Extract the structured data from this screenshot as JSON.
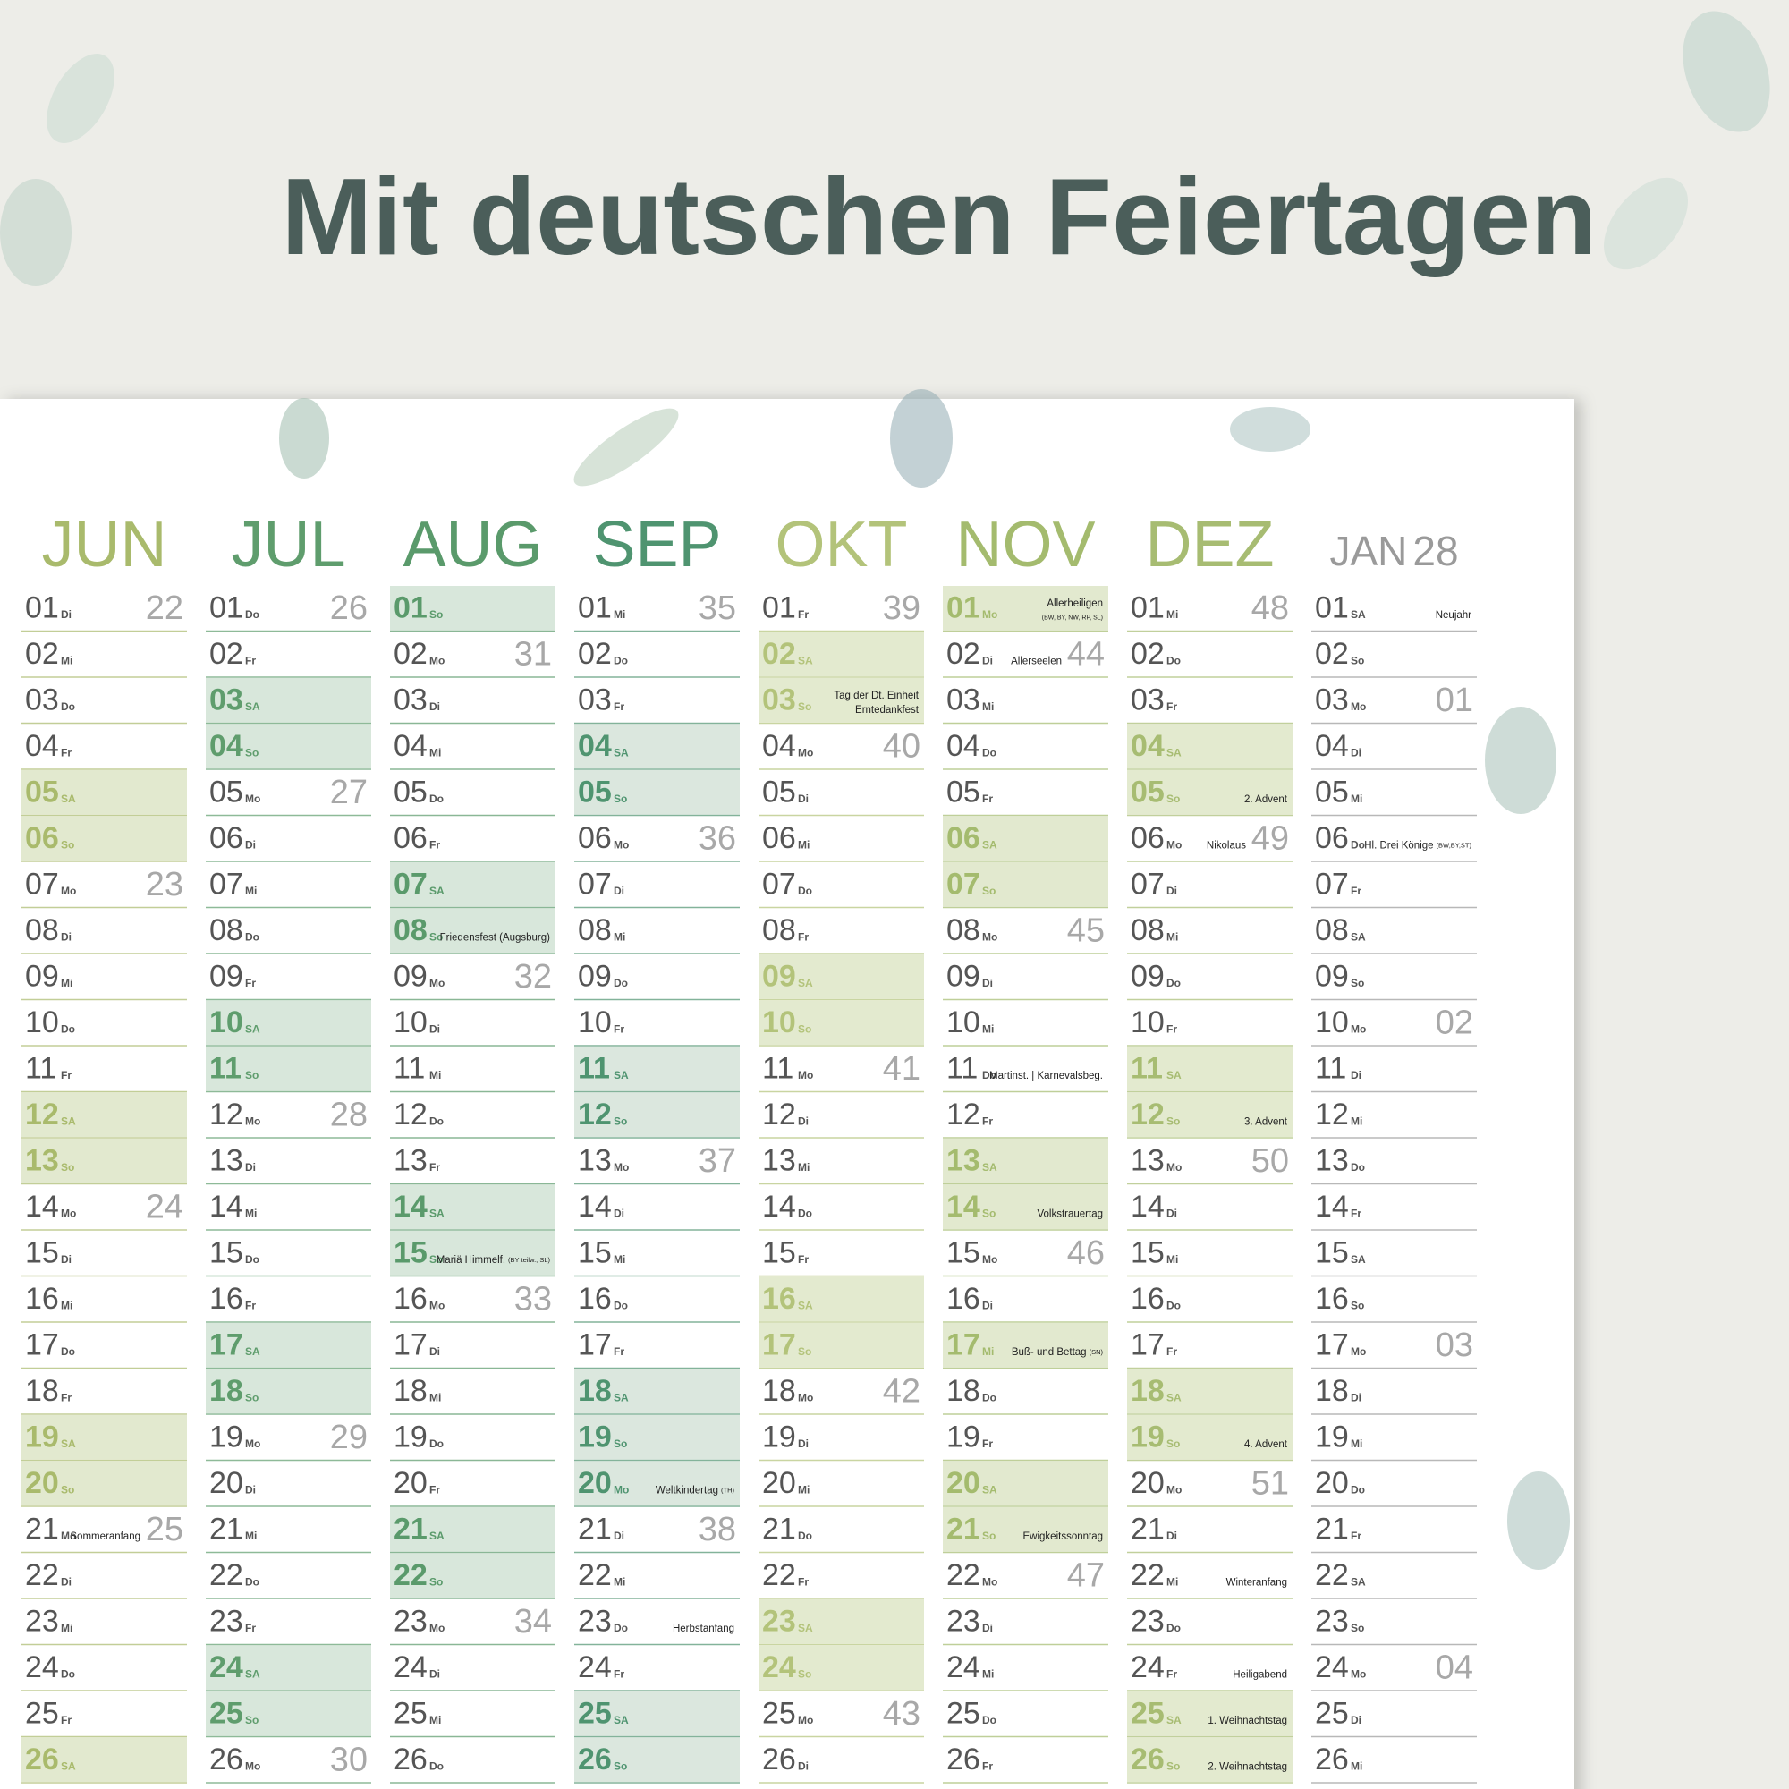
{
  "title": "Mit deutschen Feiertagen",
  "months": [
    {
      "name": "JUN",
      "color": "#a9ba6c",
      "shade": "#e2e9cf",
      "days": [
        {
          "d": "01",
          "w": "Di",
          "k": "22"
        },
        {
          "d": "02",
          "w": "Mi"
        },
        {
          "d": "03",
          "w": "Do"
        },
        {
          "d": "04",
          "w": "Fr"
        },
        {
          "d": "05",
          "w": "SA",
          "s": true
        },
        {
          "d": "06",
          "w": "So",
          "s": true
        },
        {
          "d": "07",
          "w": "Mo",
          "k": "23"
        },
        {
          "d": "08",
          "w": "Di"
        },
        {
          "d": "09",
          "w": "Mi"
        },
        {
          "d": "10",
          "w": "Do"
        },
        {
          "d": "11",
          "w": "Fr"
        },
        {
          "d": "12",
          "w": "SA",
          "s": true
        },
        {
          "d": "13",
          "w": "So",
          "s": true
        },
        {
          "d": "14",
          "w": "Mo",
          "k": "24"
        },
        {
          "d": "15",
          "w": "Di"
        },
        {
          "d": "16",
          "w": "Mi"
        },
        {
          "d": "17",
          "w": "Do"
        },
        {
          "d": "18",
          "w": "Fr"
        },
        {
          "d": "19",
          "w": "SA",
          "s": true
        },
        {
          "d": "20",
          "w": "So",
          "s": true
        },
        {
          "d": "21",
          "w": "Mo",
          "k": "25",
          "n": "Sommeranfang"
        },
        {
          "d": "22",
          "w": "Di"
        },
        {
          "d": "23",
          "w": "Mi"
        },
        {
          "d": "24",
          "w": "Do"
        },
        {
          "d": "25",
          "w": "Fr"
        },
        {
          "d": "26",
          "w": "SA",
          "s": true
        }
      ]
    },
    {
      "name": "JUL",
      "color": "#5f9d6d",
      "shade": "#d8e7db",
      "days": [
        {
          "d": "01",
          "w": "Do",
          "k": "26"
        },
        {
          "d": "02",
          "w": "Fr"
        },
        {
          "d": "03",
          "w": "SA",
          "s": true
        },
        {
          "d": "04",
          "w": "So",
          "s": true
        },
        {
          "d": "05",
          "w": "Mo",
          "k": "27"
        },
        {
          "d": "06",
          "w": "Di"
        },
        {
          "d": "07",
          "w": "Mi"
        },
        {
          "d": "08",
          "w": "Do"
        },
        {
          "d": "09",
          "w": "Fr"
        },
        {
          "d": "10",
          "w": "SA",
          "s": true
        },
        {
          "d": "11",
          "w": "So",
          "s": true
        },
        {
          "d": "12",
          "w": "Mo",
          "k": "28"
        },
        {
          "d": "13",
          "w": "Di"
        },
        {
          "d": "14",
          "w": "Mi"
        },
        {
          "d": "15",
          "w": "Do"
        },
        {
          "d": "16",
          "w": "Fr"
        },
        {
          "d": "17",
          "w": "SA",
          "s": true
        },
        {
          "d": "18",
          "w": "So",
          "s": true
        },
        {
          "d": "19",
          "w": "Mo",
          "k": "29"
        },
        {
          "d": "20",
          "w": "Di"
        },
        {
          "d": "21",
          "w": "Mi"
        },
        {
          "d": "22",
          "w": "Do"
        },
        {
          "d": "23",
          "w": "Fr"
        },
        {
          "d": "24",
          "w": "SA",
          "s": true
        },
        {
          "d": "25",
          "w": "So",
          "s": true
        },
        {
          "d": "26",
          "w": "Mo",
          "k": "30"
        }
      ]
    },
    {
      "name": "AUG",
      "color": "#5a9a6b",
      "shade": "#d8e7db",
      "days": [
        {
          "d": "01",
          "w": "So",
          "s": true
        },
        {
          "d": "02",
          "w": "Mo",
          "k": "31"
        },
        {
          "d": "03",
          "w": "Di"
        },
        {
          "d": "04",
          "w": "Mi"
        },
        {
          "d": "05",
          "w": "Do"
        },
        {
          "d": "06",
          "w": "Fr"
        },
        {
          "d": "07",
          "w": "SA",
          "s": true
        },
        {
          "d": "08",
          "w": "So",
          "s": true,
          "n": "Friedensfest (Augsburg)"
        },
        {
          "d": "09",
          "w": "Mo",
          "k": "32"
        },
        {
          "d": "10",
          "w": "Di"
        },
        {
          "d": "11",
          "w": "Mi"
        },
        {
          "d": "12",
          "w": "Do"
        },
        {
          "d": "13",
          "w": "Fr"
        },
        {
          "d": "14",
          "w": "SA",
          "s": true
        },
        {
          "d": "15",
          "w": "So",
          "s": true,
          "n": "Mariä Himmelf.",
          "sm": "(BY teilw., SL)"
        },
        {
          "d": "16",
          "w": "Mo",
          "k": "33"
        },
        {
          "d": "17",
          "w": "Di"
        },
        {
          "d": "18",
          "w": "Mi"
        },
        {
          "d": "19",
          "w": "Do"
        },
        {
          "d": "20",
          "w": "Fr"
        },
        {
          "d": "21",
          "w": "SA",
          "s": true
        },
        {
          "d": "22",
          "w": "So",
          "s": true
        },
        {
          "d": "23",
          "w": "Mo",
          "k": "34"
        },
        {
          "d": "24",
          "w": "Di"
        },
        {
          "d": "25",
          "w": "Mi"
        },
        {
          "d": "26",
          "w": "Do"
        }
      ]
    },
    {
      "name": "SEP",
      "color": "#4f9470",
      "shade": "#dbe7de",
      "days": [
        {
          "d": "01",
          "w": "Mi",
          "k": "35"
        },
        {
          "d": "02",
          "w": "Do"
        },
        {
          "d": "03",
          "w": "Fr"
        },
        {
          "d": "04",
          "w": "SA",
          "s": true
        },
        {
          "d": "05",
          "w": "So",
          "s": true
        },
        {
          "d": "06",
          "w": "Mo",
          "k": "36"
        },
        {
          "d": "07",
          "w": "Di"
        },
        {
          "d": "08",
          "w": "Mi"
        },
        {
          "d": "09",
          "w": "Do"
        },
        {
          "d": "10",
          "w": "Fr"
        },
        {
          "d": "11",
          "w": "SA",
          "s": true
        },
        {
          "d": "12",
          "w": "So",
          "s": true
        },
        {
          "d": "13",
          "w": "Mo",
          "k": "37"
        },
        {
          "d": "14",
          "w": "Di"
        },
        {
          "d": "15",
          "w": "Mi"
        },
        {
          "d": "16",
          "w": "Do"
        },
        {
          "d": "17",
          "w": "Fr"
        },
        {
          "d": "18",
          "w": "SA",
          "s": true
        },
        {
          "d": "19",
          "w": "So",
          "s": true
        },
        {
          "d": "20",
          "w": "Mo",
          "s": true,
          "n": "Weltkindertag",
          "sm": "(TH)"
        },
        {
          "d": "21",
          "w": "Di",
          "k": "38"
        },
        {
          "d": "22",
          "w": "Mi"
        },
        {
          "d": "23",
          "w": "Do",
          "n": "Herbstanfang"
        },
        {
          "d": "24",
          "w": "Fr"
        },
        {
          "d": "25",
          "w": "SA",
          "s": true
        },
        {
          "d": "26",
          "w": "So",
          "s": true
        }
      ]
    },
    {
      "name": "OKT",
      "color": "#b3c37a",
      "shade": "#e3eacf",
      "days": [
        {
          "d": "01",
          "w": "Fr",
          "k": "39"
        },
        {
          "d": "02",
          "w": "SA",
          "s": true
        },
        {
          "d": "03",
          "w": "So",
          "s": true,
          "n": "Tag der Dt. Einheit",
          "n2": "Erntedankfest"
        },
        {
          "d": "04",
          "w": "Mo",
          "k": "40"
        },
        {
          "d": "05",
          "w": "Di"
        },
        {
          "d": "06",
          "w": "Mi"
        },
        {
          "d": "07",
          "w": "Do"
        },
        {
          "d": "08",
          "w": "Fr"
        },
        {
          "d": "09",
          "w": "SA",
          "s": true
        },
        {
          "d": "10",
          "w": "So",
          "s": true
        },
        {
          "d": "11",
          "w": "Mo",
          "k": "41"
        },
        {
          "d": "12",
          "w": "Di"
        },
        {
          "d": "13",
          "w": "Mi"
        },
        {
          "d": "14",
          "w": "Do"
        },
        {
          "d": "15",
          "w": "Fr"
        },
        {
          "d": "16",
          "w": "SA",
          "s": true
        },
        {
          "d": "17",
          "w": "So",
          "s": true
        },
        {
          "d": "18",
          "w": "Mo",
          "k": "42"
        },
        {
          "d": "19",
          "w": "Di"
        },
        {
          "d": "20",
          "w": "Mi"
        },
        {
          "d": "21",
          "w": "Do"
        },
        {
          "d": "22",
          "w": "Fr"
        },
        {
          "d": "23",
          "w": "SA",
          "s": true
        },
        {
          "d": "24",
          "w": "So",
          "s": true
        },
        {
          "d": "25",
          "w": "Mo",
          "k": "43"
        },
        {
          "d": "26",
          "w": "Di"
        }
      ]
    },
    {
      "name": "NOV",
      "color": "#a4bb6e",
      "shade": "#e2e9cf",
      "days": [
        {
          "d": "01",
          "w": "Mo",
          "s": true,
          "n": "Allerheiligen",
          "n2": "(BW, BY, NW, RP, SL)"
        },
        {
          "d": "02",
          "w": "Di",
          "k": "44",
          "n": "Allerseelen"
        },
        {
          "d": "03",
          "w": "Mi"
        },
        {
          "d": "04",
          "w": "Do"
        },
        {
          "d": "05",
          "w": "Fr"
        },
        {
          "d": "06",
          "w": "SA",
          "s": true
        },
        {
          "d": "07",
          "w": "So",
          "s": true
        },
        {
          "d": "08",
          "w": "Mo",
          "k": "45"
        },
        {
          "d": "09",
          "w": "Di"
        },
        {
          "d": "10",
          "w": "Mi"
        },
        {
          "d": "11",
          "w": "Do",
          "n": "Martinst. | Karnevalsbeg."
        },
        {
          "d": "12",
          "w": "Fr"
        },
        {
          "d": "13",
          "w": "SA",
          "s": true
        },
        {
          "d": "14",
          "w": "So",
          "s": true,
          "n": "Volkstrauertag"
        },
        {
          "d": "15",
          "w": "Mo",
          "k": "46"
        },
        {
          "d": "16",
          "w": "Di"
        },
        {
          "d": "17",
          "w": "Mi",
          "s": true,
          "n": "Buß- und Bettag",
          "sm": "(SN)"
        },
        {
          "d": "18",
          "w": "Do"
        },
        {
          "d": "19",
          "w": "Fr"
        },
        {
          "d": "20",
          "w": "SA",
          "s": true
        },
        {
          "d": "21",
          "w": "So",
          "s": true,
          "n": "Ewigkeitssonntag"
        },
        {
          "d": "22",
          "w": "Mo",
          "k": "47"
        },
        {
          "d": "23",
          "w": "Di"
        },
        {
          "d": "24",
          "w": "Mi"
        },
        {
          "d": "25",
          "w": "Do"
        },
        {
          "d": "26",
          "w": "Fr"
        }
      ]
    },
    {
      "name": "DEZ",
      "color": "#a7bc72",
      "shade": "#e3eacf",
      "days": [
        {
          "d": "01",
          "w": "Mi",
          "k": "48"
        },
        {
          "d": "02",
          "w": "Do"
        },
        {
          "d": "03",
          "w": "Fr"
        },
        {
          "d": "04",
          "w": "SA",
          "s": true
        },
        {
          "d": "05",
          "w": "So",
          "s": true,
          "n": "2. Advent"
        },
        {
          "d": "06",
          "w": "Mo",
          "k": "49",
          "n": "Nikolaus"
        },
        {
          "d": "07",
          "w": "Di"
        },
        {
          "d": "08",
          "w": "Mi"
        },
        {
          "d": "09",
          "w": "Do"
        },
        {
          "d": "10",
          "w": "Fr"
        },
        {
          "d": "11",
          "w": "SA",
          "s": true
        },
        {
          "d": "12",
          "w": "So",
          "s": true,
          "n": "3. Advent"
        },
        {
          "d": "13",
          "w": "Mo",
          "k": "50"
        },
        {
          "d": "14",
          "w": "Di"
        },
        {
          "d": "15",
          "w": "Mi"
        },
        {
          "d": "16",
          "w": "Do"
        },
        {
          "d": "17",
          "w": "Fr"
        },
        {
          "d": "18",
          "w": "SA",
          "s": true
        },
        {
          "d": "19",
          "w": "So",
          "s": true,
          "n": "4. Advent"
        },
        {
          "d": "20",
          "w": "Mo",
          "k": "51"
        },
        {
          "d": "21",
          "w": "Di"
        },
        {
          "d": "22",
          "w": "Mi",
          "n": "Winteranfang"
        },
        {
          "d": "23",
          "w": "Do"
        },
        {
          "d": "24",
          "w": "Fr",
          "n": "Heiligabend"
        },
        {
          "d": "25",
          "w": "SA",
          "s": true,
          "n": "1. Weihnachtstag"
        },
        {
          "d": "26",
          "w": "So",
          "s": true,
          "n": "2. Weihnachtstag"
        }
      ]
    },
    {
      "name": "JAN",
      "year": "28",
      "color": "#9a9a9a",
      "shade": "#ffffff",
      "days": [
        {
          "d": "01",
          "w": "SA",
          "n": "Neujahr"
        },
        {
          "d": "02",
          "w": "So"
        },
        {
          "d": "03",
          "w": "Mo",
          "k": "01"
        },
        {
          "d": "04",
          "w": "Di"
        },
        {
          "d": "05",
          "w": "Mi"
        },
        {
          "d": "06",
          "w": "Do",
          "n": "Hl. Drei Könige",
          "sm": "(BW,BY,ST)"
        },
        {
          "d": "07",
          "w": "Fr"
        },
        {
          "d": "08",
          "w": "SA"
        },
        {
          "d": "09",
          "w": "So"
        },
        {
          "d": "10",
          "w": "Mo",
          "k": "02"
        },
        {
          "d": "11",
          "w": "Di"
        },
        {
          "d": "12",
          "w": "Mi"
        },
        {
          "d": "13",
          "w": "Do"
        },
        {
          "d": "14",
          "w": "Fr"
        },
        {
          "d": "15",
          "w": "SA"
        },
        {
          "d": "16",
          "w": "So"
        },
        {
          "d": "17",
          "w": "Mo",
          "k": "03"
        },
        {
          "d": "18",
          "w": "Di"
        },
        {
          "d": "19",
          "w": "Mi"
        },
        {
          "d": "20",
          "w": "Do"
        },
        {
          "d": "21",
          "w": "Fr"
        },
        {
          "d": "22",
          "w": "SA"
        },
        {
          "d": "23",
          "w": "So"
        },
        {
          "d": "24",
          "w": "Mo",
          "k": "04"
        },
        {
          "d": "25",
          "w": "Di"
        },
        {
          "d": "26",
          "w": "Mi"
        }
      ]
    }
  ]
}
